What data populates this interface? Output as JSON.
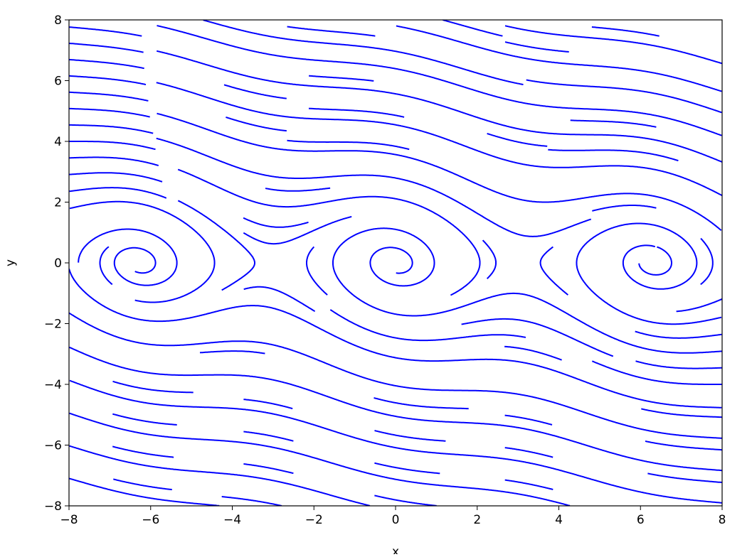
{
  "chart_data": {
    "type": "streamplot",
    "xlabel": "x",
    "ylabel": "y",
    "xlim": [
      -8,
      8
    ],
    "ylim": [
      -8,
      8
    ],
    "xticks": [
      -8,
      -6,
      -4,
      -2,
      0,
      2,
      4,
      6,
      8
    ],
    "yticks": [
      -8,
      -6,
      -4,
      -2,
      0,
      2,
      4,
      6,
      8
    ],
    "xtick_labels": [
      "−8",
      "−6",
      "−4",
      "−2",
      "0",
      "2",
      "4",
      "6",
      "8"
    ],
    "ytick_labels": [
      "−8",
      "−6",
      "−4",
      "−2",
      "0",
      "2",
      "4",
      "6",
      "8"
    ],
    "line_color": "#0000ff",
    "grid": false
  }
}
